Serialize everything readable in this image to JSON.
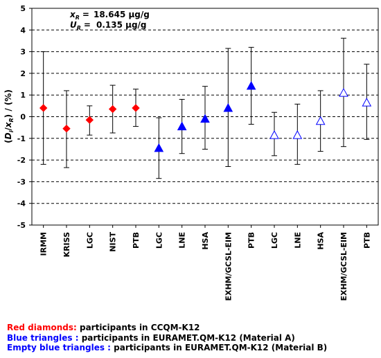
{
  "chart_data": {
    "type": "scatter",
    "ylabel_parts": {
      "open": "(",
      "D": "D",
      "i": "i",
      "sep": "/",
      "x": "x",
      "R": "R",
      "close": ") / (%)"
    },
    "ylim": [
      -5,
      5
    ],
    "yticks": [
      5,
      4,
      3,
      2,
      1,
      0,
      -1,
      -2,
      -3,
      -4,
      -5
    ],
    "grid": "horizontal dashed",
    "annotations": {
      "xr": {
        "sym": "x",
        "sub": "R",
        "eq": "=",
        "val": "18.645 µg/g"
      },
      "ur": {
        "sym": "U",
        "sub": "R",
        "eq": "=",
        "val": "0.135 µg/g"
      }
    },
    "categories": [
      "IRMM",
      "KRISS",
      "LGC",
      "NIST",
      "PTB",
      "LGC",
      "LNE",
      "HSA",
      "EXHM/GCSL-EIM",
      "PTB",
      "LGC",
      "LNE",
      "HSA",
      "EXHM/GCSL-EIM",
      "PTB"
    ],
    "series": [
      {
        "marker": "diamond",
        "color": "#ff0000",
        "fill": "filled",
        "points": [
          {
            "x": "IRMM",
            "y": 0.4,
            "low": -2.2,
            "high": 3.0
          },
          {
            "x": "KRISS",
            "y": -0.55,
            "low": -2.35,
            "high": 1.2
          },
          {
            "x": "LGC",
            "y": -0.15,
            "low": -0.85,
            "high": 0.5
          },
          {
            "x": "NIST",
            "y": 0.35,
            "low": -0.75,
            "high": 1.45
          },
          {
            "x": "PTB",
            "y": 0.4,
            "low": -0.45,
            "high": 1.27
          }
        ]
      },
      {
        "marker": "triangle",
        "color": "#0000ff",
        "fill": "filled",
        "points": [
          {
            "x": "LGC",
            "y": -1.45,
            "low": -2.85,
            "high": -0.05
          },
          {
            "x": "LNE",
            "y": -0.45,
            "low": -1.7,
            "high": 0.8
          },
          {
            "x": "HSA",
            "y": -0.1,
            "low": -1.5,
            "high": 1.4
          },
          {
            "x": "EXHM/GCSL-EIM",
            "y": 0.4,
            "low": -2.3,
            "high": 3.15
          },
          {
            "x": "PTB",
            "y": 1.42,
            "low": -0.35,
            "high": 3.2
          }
        ]
      },
      {
        "marker": "triangle",
        "color": "#0000ff",
        "fill": "empty",
        "points": [
          {
            "x": "LGC",
            "y": -0.85,
            "low": -1.8,
            "high": 0.2
          },
          {
            "x": "LNE",
            "y": -0.85,
            "low": -2.2,
            "high": 0.58
          },
          {
            "x": "HSA",
            "y": -0.2,
            "low": -1.6,
            "high": 1.2
          },
          {
            "x": "EXHM/GCSL-EIM",
            "y": 1.1,
            "low": -1.38,
            "high": 3.62
          },
          {
            "x": "PTB",
            "y": 0.65,
            "low": -1.05,
            "high": 2.42
          }
        ]
      }
    ]
  },
  "legend": [
    {
      "key": "Red diamonds",
      "sep": ":",
      "text": " participants  in CCQM-K12",
      "color": "#ff0000"
    },
    {
      "key": "Blue triangles ",
      "sep": ":",
      "text": " participants  in EURAMET.QM-K12 (Material A)",
      "color": "#0000ff"
    },
    {
      "key": "Empty blue triangles ",
      "sep": ":",
      "text": " participants  in EURAMET.QM-K12 (Material B)",
      "color": "#0000ff"
    }
  ]
}
